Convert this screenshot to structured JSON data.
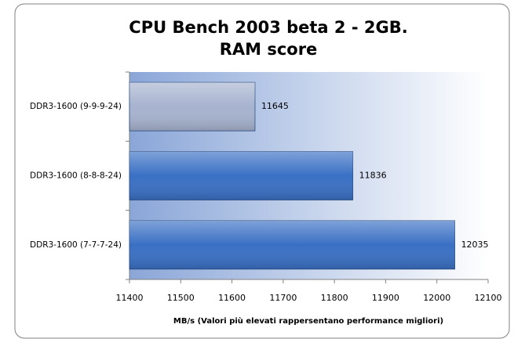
{
  "chart_data": {
    "type": "hbar",
    "title": "CPU Bench 2003 beta 2 - 2GB.",
    "subtitle": "RAM score",
    "x_label": "MB/s (Valori più  elevati rappersentano performance migliori)",
    "categories": [
      "DDR3-1600 (9-9-9-24)",
      "DDR3-1600 (8-8-8-24)",
      "DDR3-1600 (7-7-7-24)"
    ],
    "values": [
      11645,
      11836,
      12035
    ],
    "colors": [
      "#a7b3cf",
      "#3a70c4",
      "#3a70c4"
    ],
    "xlim": [
      11400,
      12100
    ],
    "xticks": [
      11400,
      11500,
      11600,
      11700,
      11800,
      11900,
      12000,
      12100
    ]
  }
}
